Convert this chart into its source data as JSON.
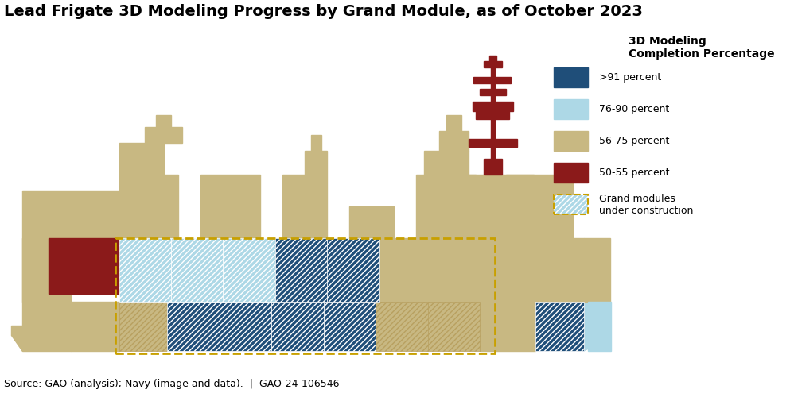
{
  "title": "Lead Frigate 3D Modeling Progress by Grand Module, as of October 2023",
  "source_text": "Source: GAO (analysis); Navy (image and data).  |  GAO-24-106546",
  "legend_title": "3D Modeling\nCompletion Percentage",
  "legend_items": [
    {
      "label": ">91 percent",
      "color": "#1F4E79",
      "hatch": null
    },
    {
      "label": "76-90 percent",
      "color": "#ADD8E6",
      "hatch": null
    },
    {
      "label": "56-75 percent",
      "color": "#C8B882",
      "hatch": null
    },
    {
      "label": "50-55 percent",
      "color": "#8B1A1A",
      "hatch": null
    },
    {
      "label": "Grand modules\nunder construction",
      "color": "#ADD8E6",
      "hatch": "////",
      "border": "#C8A000"
    }
  ],
  "colors": {
    "dark_blue": "#1F4E79",
    "light_blue": "#ADD8E6",
    "tan": "#C8B882",
    "dark_red": "#8B1A1A",
    "dashed_border": "#C8A000",
    "white": "#FFFFFF",
    "background": "#FFFFFF"
  },
  "title_fontsize": 14,
  "source_fontsize": 9
}
